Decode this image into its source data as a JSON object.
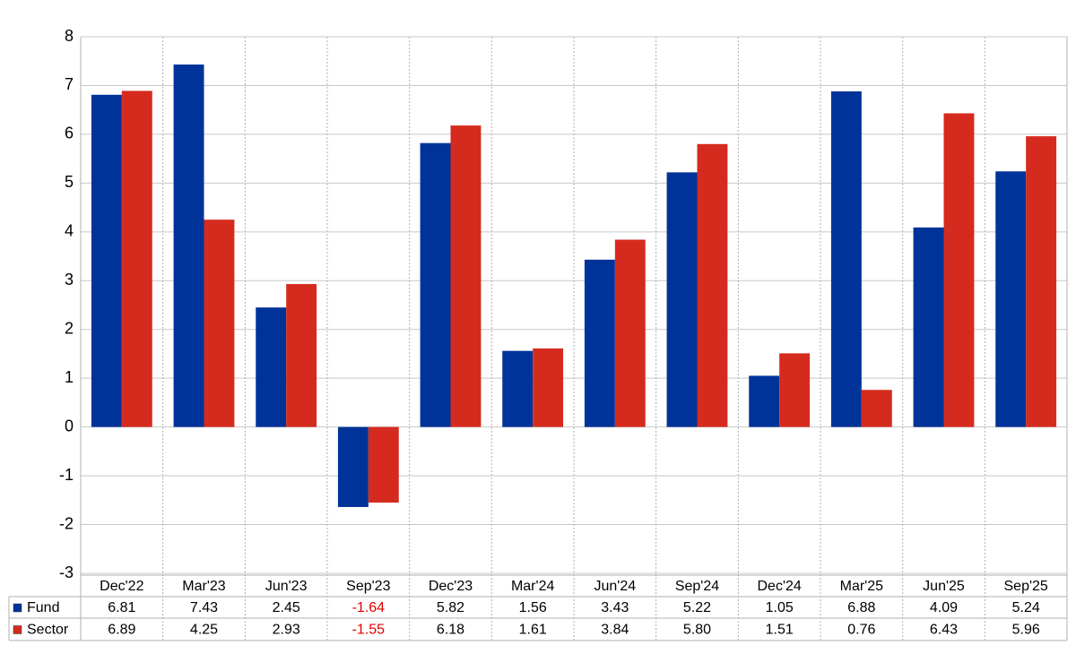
{
  "chart_data": {
    "type": "bar",
    "categories": [
      "Dec'22",
      "Mar'23",
      "Jun'23",
      "Sep'23",
      "Dec'23",
      "Mar'24",
      "Jun'24",
      "Sep'24",
      "Dec'24",
      "Mar'25",
      "Jun'25",
      "Sep'25"
    ],
    "series": [
      {
        "name": "Fund",
        "color": "#003399",
        "values": [
          6.81,
          7.43,
          2.45,
          -1.64,
          5.82,
          1.56,
          3.43,
          5.22,
          1.05,
          6.88,
          4.09,
          5.24
        ],
        "value_labels": [
          "6.81",
          "7.43",
          "2.45",
          "-1.64",
          "5.82",
          "1.56",
          "3.43",
          "5.22",
          "1.05",
          "6.88",
          "4.09",
          "5.24"
        ]
      },
      {
        "name": "Sector",
        "color": "#d52b1e",
        "values": [
          6.89,
          4.25,
          2.93,
          -1.55,
          6.18,
          1.61,
          3.84,
          5.8,
          1.51,
          0.76,
          6.43,
          5.96
        ],
        "value_labels": [
          "6.89",
          "4.25",
          "2.93",
          "-1.55",
          "6.18",
          "1.61",
          "3.84",
          "5.80",
          "1.51",
          "0.76",
          "6.43",
          "5.96"
        ]
      }
    ],
    "ylim": [
      -3,
      8
    ],
    "yticks": [
      -3,
      -2,
      -1,
      0,
      1,
      2,
      3,
      4,
      5,
      6,
      7,
      8
    ],
    "grid": true,
    "negative_color": "#e00000"
  }
}
